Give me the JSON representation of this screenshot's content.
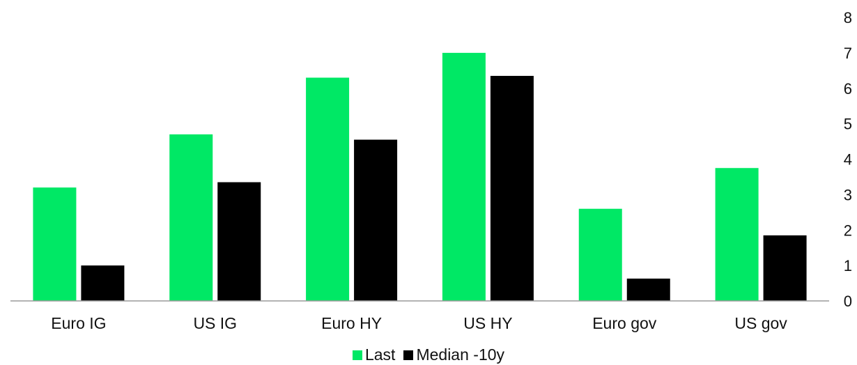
{
  "chart_data": {
    "type": "bar",
    "categories": [
      "Euro IG",
      "US IG",
      "Euro HY",
      "US HY",
      "Euro gov",
      "US gov"
    ],
    "series": [
      {
        "name": "Last",
        "color": "#00E865",
        "values": [
          3.2,
          4.7,
          6.3,
          7.0,
          2.6,
          3.75
        ]
      },
      {
        "name": "Median -10y",
        "color": "#000000",
        "values": [
          1.0,
          3.35,
          4.55,
          6.35,
          0.63,
          1.85
        ]
      }
    ],
    "yticks": [
      "0",
      "1",
      "2",
      "3",
      "4",
      "5",
      "6",
      "7",
      "8"
    ],
    "ylim": [
      0,
      8
    ],
    "yaxis_position": "right",
    "legend_position": "bottom-center",
    "grid": false
  }
}
